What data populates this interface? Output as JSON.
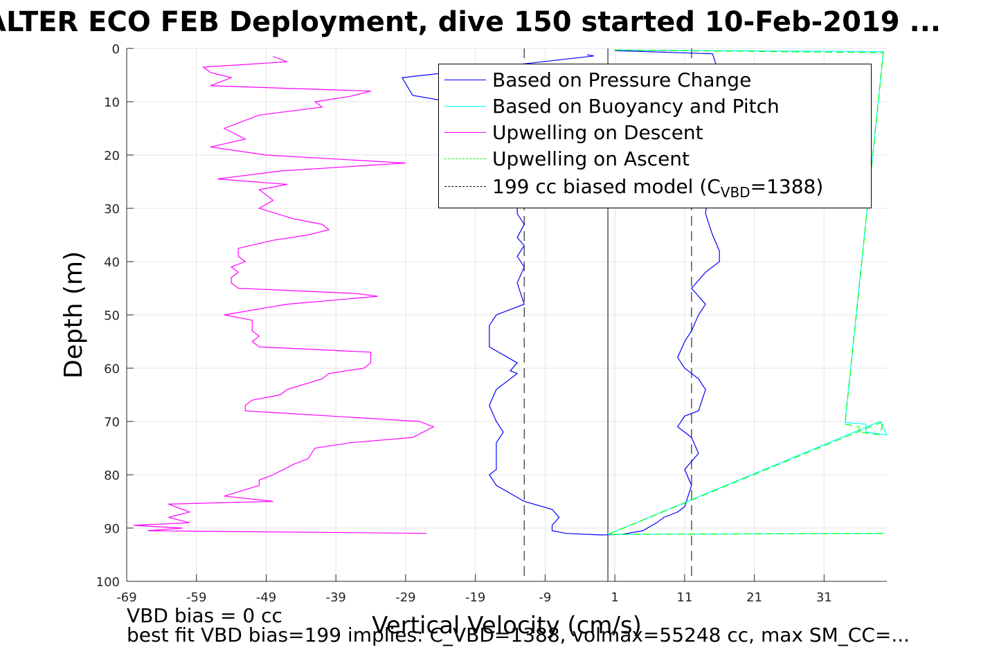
{
  "title": "ALTER ECO FEB Deployment, dive 150 started 10-Feb-2019 ...",
  "footer": {
    "line1": "VBD bias = 0 cc",
    "line2": "best fit VBD bias=199 implies: C_VBD=1388, volmax=55248 cc, max SM_CC=..."
  },
  "legend": {
    "items": [
      {
        "label": "Based on Pressure Change",
        "color": "#0000ff",
        "dash": "solid"
      },
      {
        "label": "Based on Buoyancy and Pitch",
        "color": "#00ffff",
        "dash": "solid"
      },
      {
        "label": "Upwelling on Descent",
        "color": "#ff00ff",
        "dash": "solid"
      },
      {
        "label": "Upwelling on Ascent",
        "color": "#00ff00",
        "dash": "dashed"
      },
      {
        "label": "199 cc biased model (C",
        "sub": "VBD",
        "suffix": "=1388)",
        "color": "#000000",
        "dash": "dashed"
      }
    ]
  },
  "chart_data": {
    "type": "line",
    "xlabel": "Vertical Velocity (cm/s)",
    "ylabel": "Depth (m)",
    "xlim": [
      -69,
      40
    ],
    "ylim": [
      0,
      100
    ],
    "y_reversed": true,
    "xticks": [
      -69,
      -59,
      -49,
      -39,
      -29,
      -19,
      -9,
      1,
      11,
      21,
      31
    ],
    "yticks": [
      0,
      10,
      20,
      30,
      40,
      50,
      60,
      70,
      80,
      90,
      100
    ],
    "grid": true,
    "legend_position": "top-right",
    "vertical_lines": [
      {
        "x": 0,
        "color": "#000000",
        "style": "solid"
      },
      {
        "x": -12,
        "color": "#000000",
        "style": "dashed"
      },
      {
        "x": 12,
        "color": "#000000",
        "style": "dashed"
      }
    ],
    "series": [
      {
        "name": "Based on Pressure Change",
        "color": "#0000ff",
        "points": [
          [
            -3,
            1.2
          ],
          [
            -2,
            1.4
          ],
          [
            -29.5,
            5.5
          ],
          [
            -28,
            8.8
          ],
          [
            -14,
            12
          ],
          [
            -13,
            20
          ],
          [
            -13,
            25
          ],
          [
            -13,
            31
          ],
          [
            -12,
            33
          ],
          [
            -13,
            35.5
          ],
          [
            -12,
            37
          ],
          [
            -13,
            39
          ],
          [
            -12,
            41
          ],
          [
            -13,
            44
          ],
          [
            -12,
            48
          ],
          [
            -16,
            50
          ],
          [
            -17,
            52
          ],
          [
            -17,
            56
          ],
          [
            -13,
            59
          ],
          [
            -14,
            60.5
          ],
          [
            -13,
            61
          ],
          [
            -16,
            64
          ],
          [
            -17,
            67
          ],
          [
            -16,
            70
          ],
          [
            -15,
            72
          ],
          [
            -16,
            74
          ],
          [
            -16,
            79
          ],
          [
            -17,
            80
          ],
          [
            -16,
            82
          ],
          [
            -12,
            85
          ],
          [
            -8,
            86.5
          ],
          [
            -7,
            88
          ],
          [
            -8,
            89.5
          ],
          [
            -8,
            90.5
          ],
          [
            -6,
            91
          ],
          [
            -1,
            91.3
          ],
          [
            2,
            91.2
          ],
          [
            5,
            90.5
          ],
          [
            7,
            89
          ],
          [
            8,
            88
          ],
          [
            10,
            87
          ],
          [
            11,
            86
          ],
          [
            12,
            82
          ],
          [
            11,
            79
          ],
          [
            13,
            76
          ],
          [
            12,
            73
          ],
          [
            10,
            71
          ],
          [
            11,
            69
          ],
          [
            13,
            68
          ],
          [
            14,
            64
          ],
          [
            13,
            62
          ],
          [
            11,
            60
          ],
          [
            10,
            58
          ],
          [
            11,
            55
          ],
          [
            12,
            53
          ],
          [
            13,
            50
          ],
          [
            14,
            48
          ],
          [
            12,
            45
          ],
          [
            14,
            42
          ],
          [
            16,
            40
          ],
          [
            16,
            38
          ],
          [
            15,
            35
          ],
          [
            14,
            31
          ],
          [
            15,
            20
          ],
          [
            16,
            12
          ],
          [
            16,
            5
          ],
          [
            15,
            1
          ],
          [
            1,
            0.4
          ]
        ]
      },
      {
        "name": "Based on Buoyancy and Pitch",
        "color": "#00ffff",
        "points": [
          [
            1,
            0.3
          ],
          [
            39.5,
            0.6
          ],
          [
            34,
            70.2
          ],
          [
            37,
            70.5
          ],
          [
            37,
            72
          ],
          [
            40,
            72.5
          ],
          [
            39,
            70
          ],
          [
            0,
            91.2
          ],
          [
            39.5,
            91
          ]
        ]
      },
      {
        "name": "Upwelling on Descent",
        "color": "#ff00ff",
        "points": [
          [
            -48,
            1.5
          ],
          [
            -46,
            2.5
          ],
          [
            -58,
            3.5
          ],
          [
            -57,
            4.5
          ],
          [
            -54,
            5.5
          ],
          [
            -57,
            7
          ],
          [
            -34,
            8
          ],
          [
            -37,
            9
          ],
          [
            -42,
            10
          ],
          [
            -41,
            11
          ],
          [
            -50,
            12.5
          ],
          [
            -55,
            15
          ],
          [
            -52,
            17
          ],
          [
            -57,
            18.5
          ],
          [
            -49,
            20
          ],
          [
            -29,
            21.5
          ],
          [
            -35,
            22
          ],
          [
            -47,
            23
          ],
          [
            -56,
            24.5
          ],
          [
            -46,
            25.5
          ],
          [
            -50,
            26.5
          ],
          [
            -49,
            27.5
          ],
          [
            -48,
            28.5
          ],
          [
            -50,
            30
          ],
          [
            -45,
            32
          ],
          [
            -41,
            33
          ],
          [
            -40,
            34
          ],
          [
            -43,
            35
          ],
          [
            -48,
            36
          ],
          [
            -53,
            37.5
          ],
          [
            -53,
            39
          ],
          [
            -52,
            40
          ],
          [
            -54,
            41
          ],
          [
            -53,
            42
          ],
          [
            -54,
            43
          ],
          [
            -54,
            44
          ],
          [
            -53,
            45
          ],
          [
            -36,
            46
          ],
          [
            -33,
            46.5
          ],
          [
            -46,
            48
          ],
          [
            -55,
            50
          ],
          [
            -51,
            51
          ],
          [
            -51,
            53
          ],
          [
            -50,
            54
          ],
          [
            -51,
            55
          ],
          [
            -50,
            56
          ],
          [
            -34,
            57
          ],
          [
            -34,
            59
          ],
          [
            -35,
            60
          ],
          [
            -40,
            61
          ],
          [
            -41,
            62
          ],
          [
            -46,
            64
          ],
          [
            -47,
            65
          ],
          [
            -51,
            66
          ],
          [
            -52,
            67
          ],
          [
            -52,
            68
          ],
          [
            -27,
            70
          ],
          [
            -25,
            71
          ],
          [
            -28,
            73
          ],
          [
            -37,
            74
          ],
          [
            -42,
            75
          ],
          [
            -43,
            77
          ],
          [
            -45,
            78
          ],
          [
            -48,
            80
          ],
          [
            -50,
            81
          ],
          [
            -50,
            82
          ],
          [
            -55,
            84
          ],
          [
            -48,
            85
          ],
          [
            -63,
            85.5
          ],
          [
            -60,
            87
          ],
          [
            -63,
            88
          ],
          [
            -60,
            89
          ],
          [
            -68,
            89.5
          ],
          [
            -61,
            90
          ],
          [
            -66,
            90.5
          ],
          [
            -26,
            91
          ]
        ]
      },
      {
        "name": "Upwelling on Ascent",
        "color": "#00ff00",
        "points": [
          [
            1,
            0.3
          ],
          [
            39.5,
            0.8
          ],
          [
            34,
            70.5
          ],
          [
            36,
            71
          ],
          [
            36,
            72
          ],
          [
            39,
            72.5
          ],
          [
            39.5,
            70
          ],
          [
            0,
            91.2
          ],
          [
            39.5,
            91
          ]
        ]
      }
    ]
  }
}
